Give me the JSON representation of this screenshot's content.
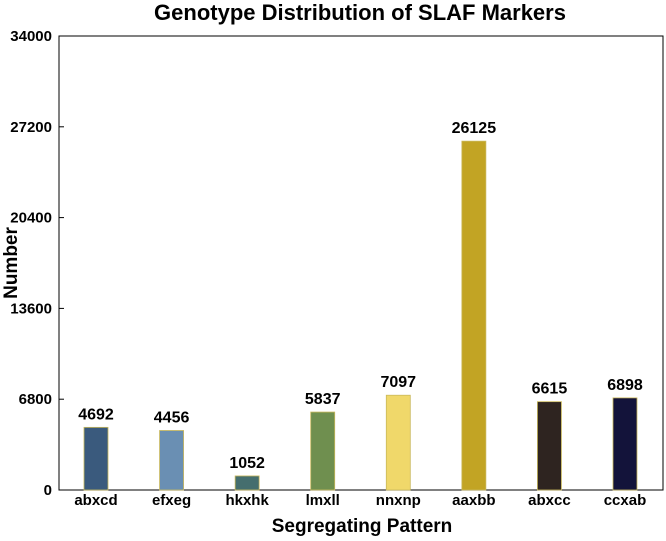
{
  "chart_data": {
    "type": "bar",
    "title": "Genotype Distribution of SLAF Markers",
    "xlabel": "Segregating Pattern",
    "ylabel": "Number",
    "ylim": [
      0,
      34000
    ],
    "yticks": [
      "0",
      "6800",
      "13600",
      "20400",
      "27200",
      "34000"
    ],
    "grid": false,
    "categories": [
      "abxcd",
      "efxeg",
      "hkxhk",
      "lmxll",
      "nnxnp",
      "aaxbb",
      "abxcc",
      "ccxab"
    ],
    "values": [
      4692,
      4456,
      1052,
      5837,
      7097,
      26125,
      6615,
      6898
    ],
    "colors": [
      "#3a5a7d",
      "#6a8fb3",
      "#456e6e",
      "#6f8f4f",
      "#f0d86a",
      "#c2a424",
      "#2e2420",
      "#13133a"
    ]
  }
}
